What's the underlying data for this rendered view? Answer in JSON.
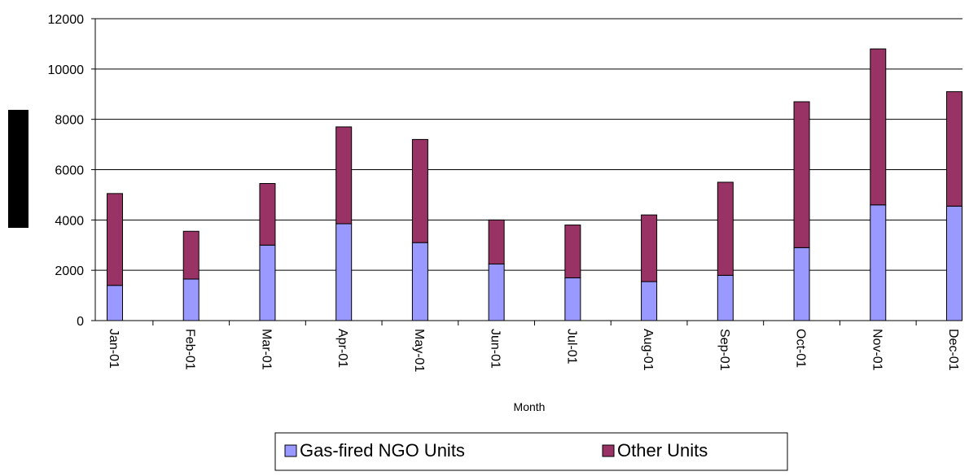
{
  "chart_data": {
    "type": "stacked-bar",
    "x_label": "Month",
    "categories": [
      "Jan-01",
      "Feb-01",
      "Mar-01",
      "Apr-01",
      "May-01",
      "Jun-01",
      "Jul-01",
      "Aug-01",
      "Sep-01",
      "Oct-01",
      "Nov-01",
      "Dec-01"
    ],
    "series": [
      {
        "name": "Gas-fired NGO Units",
        "color": "#9999ff",
        "values": [
          1400,
          1650,
          3000,
          3850,
          3100,
          2250,
          1700,
          1550,
          1800,
          2900,
          4600,
          4550
        ]
      },
      {
        "name": "Other Units",
        "color": "#993366",
        "values": [
          3650,
          1900,
          2450,
          3850,
          4100,
          1750,
          2100,
          2650,
          3700,
          5800,
          6200,
          4550
        ]
      }
    ],
    "ylim": [
      0,
      12000
    ],
    "yticks": [
      0,
      2000,
      4000,
      6000,
      8000,
      10000,
      12000
    ],
    "grid": true
  }
}
